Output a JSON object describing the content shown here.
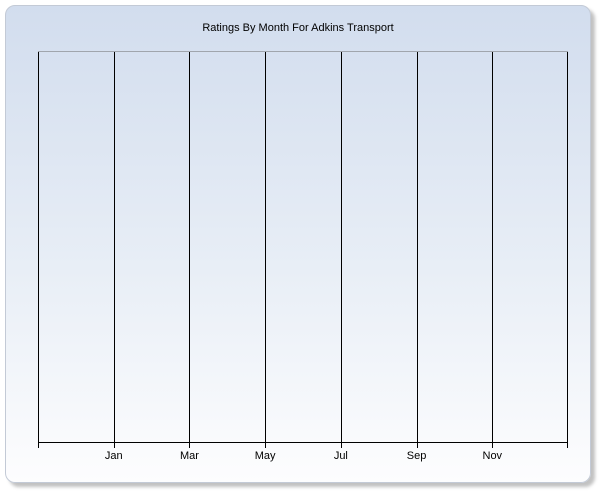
{
  "chart_data": {
    "type": "line",
    "title": "Ratings By Month For Adkins Transport",
    "x_tick_labels": [
      "Jan",
      "Mar",
      "May",
      "Jul",
      "Sep",
      "Nov"
    ],
    "y_tick_labels": [],
    "xlabel": "",
    "ylabel": "",
    "series": [],
    "plot_empty": true,
    "grid": "vertical-only",
    "legend": "none",
    "gridline_count": 8,
    "layout_note": "x-axis labels are centered under interior gridlines 2 through 7; no y-axis tick labels; no data plotted"
  },
  "style": {
    "panel_gradient_top": "#d2ddee",
    "panel_gradient_mid": "#e8eef6",
    "panel_gradient_bottom": "#fdfdfe",
    "panel_border": "#c3cad6",
    "shadow_color": "rgba(120,120,120,0.45)",
    "plot_top_border": "#a0a5ad",
    "gridline_color": "#000000",
    "axis_color": "#000000",
    "text_color": "#000000"
  }
}
